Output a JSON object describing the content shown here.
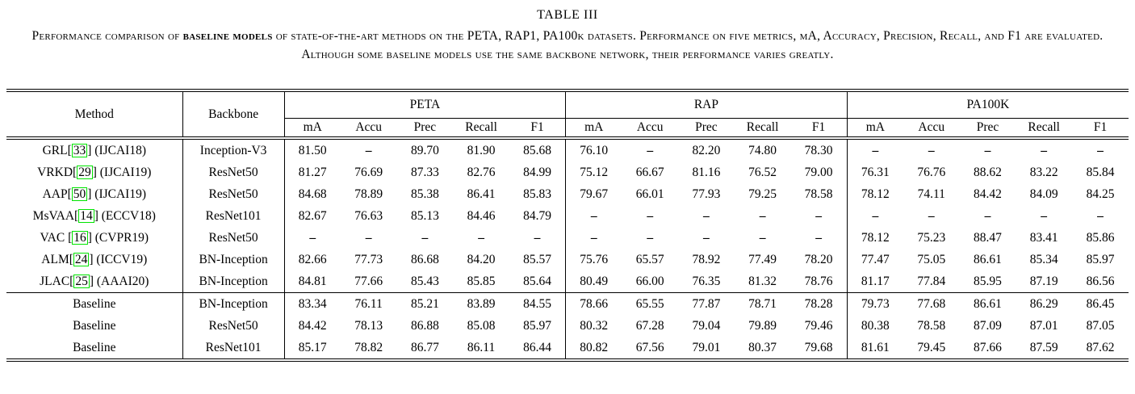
{
  "title": "TABLE III",
  "caption": {
    "segments": [
      {
        "text": "Performance comparison of ",
        "bold": false
      },
      {
        "text": "baseline models",
        "bold": true
      },
      {
        "text": " of state-of-the-art methods on the PETA, RAP1, PA100k datasets. Performance on five metrics, mA, Accuracy, Precision, Recall, and F1 are evaluated. Although some baseline models use the same backbone network, their performance varies greatly.",
        "bold": false
      }
    ]
  },
  "colors": {
    "citation_border": "#00e400",
    "text": "#000000",
    "background": "#ffffff"
  },
  "table": {
    "columns": {
      "method": "Method",
      "backbone": "Backbone"
    },
    "groups": [
      {
        "label": "PETA",
        "metrics": [
          "mA",
          "Accu",
          "Prec",
          "Recall",
          "F1"
        ]
      },
      {
        "label": "RAP",
        "metrics": [
          "mA",
          "Accu",
          "Prec",
          "Recall",
          "F1"
        ]
      },
      {
        "label": "PA100K",
        "metrics": [
          "mA",
          "Accu",
          "Prec",
          "Recall",
          "F1"
        ]
      }
    ],
    "rows": [
      {
        "section": "sota",
        "method_pre": "GRL[",
        "cite": "33",
        "method_post": "] (IJCAI18)",
        "backbone": "Inception-V3",
        "peta": [
          "81.50",
          "–",
          "89.70",
          "81.90",
          "85.68"
        ],
        "rap": [
          "76.10",
          "–",
          "82.20",
          "74.80",
          "78.30"
        ],
        "pa100k": [
          "–",
          "–",
          "–",
          "–",
          "–"
        ]
      },
      {
        "section": "sota",
        "method_pre": "VRKD[",
        "cite": "29",
        "method_post": "] (IJCAI19)",
        "backbone": "ResNet50",
        "peta": [
          "81.27",
          "76.69",
          "87.33",
          "82.76",
          "84.99"
        ],
        "rap": [
          "75.12",
          "66.67",
          "81.16",
          "76.52",
          "79.00"
        ],
        "pa100k": [
          "76.31",
          "76.76",
          "88.62",
          "83.22",
          "85.84"
        ]
      },
      {
        "section": "sota",
        "method_pre": "AAP[",
        "cite": "50",
        "method_post": "] (IJCAI19)",
        "backbone": "ResNet50",
        "peta": [
          "84.68",
          "78.89",
          "85.38",
          "86.41",
          "85.83"
        ],
        "rap": [
          "79.67",
          "66.01",
          "77.93",
          "79.25",
          "78.58"
        ],
        "pa100k": [
          "78.12",
          "74.11",
          "84.42",
          "84.09",
          "84.25"
        ]
      },
      {
        "section": "sota",
        "method_pre": "MsVAA[",
        "cite": "14",
        "method_post": "] (ECCV18)",
        "backbone": "ResNet101",
        "peta": [
          "82.67",
          "76.63",
          "85.13",
          "84.46",
          "84.79"
        ],
        "rap": [
          "–",
          "–",
          "–",
          "–",
          "–"
        ],
        "pa100k": [
          "–",
          "–",
          "–",
          "–",
          "–"
        ]
      },
      {
        "section": "sota",
        "method_pre": "VAC [",
        "cite": "16",
        "method_post": "] (CVPR19)",
        "backbone": "ResNet50",
        "peta": [
          "–",
          "–",
          "–",
          "–",
          "–"
        ],
        "rap": [
          "–",
          "–",
          "–",
          "–",
          "–"
        ],
        "pa100k": [
          "78.12",
          "75.23",
          "88.47",
          "83.41",
          "85.86"
        ]
      },
      {
        "section": "sota",
        "method_pre": "ALM[",
        "cite": "24",
        "method_post": "] (ICCV19)",
        "backbone": "BN-Inception",
        "peta": [
          "82.66",
          "77.73",
          "86.68",
          "84.20",
          "85.57"
        ],
        "rap": [
          "75.76",
          "65.57",
          "78.92",
          "77.49",
          "78.20"
        ],
        "pa100k": [
          "77.47",
          "75.05",
          "86.61",
          "85.34",
          "85.97"
        ]
      },
      {
        "section": "sota",
        "method_pre": "JLAC[",
        "cite": "25",
        "method_post": "] (AAAI20)",
        "backbone": "BN-Inception",
        "peta": [
          "84.81",
          "77.66",
          "85.43",
          "85.85",
          "85.64"
        ],
        "rap": [
          "80.49",
          "66.00",
          "76.35",
          "81.32",
          "78.76"
        ],
        "pa100k": [
          "81.17",
          "77.84",
          "85.95",
          "87.19",
          "86.56"
        ]
      },
      {
        "section": "baseline",
        "method_pre": "Baseline",
        "cite": "",
        "method_post": "",
        "backbone": "BN-Inception",
        "peta": [
          "83.34",
          "76.11",
          "85.21",
          "83.89",
          "84.55"
        ],
        "rap": [
          "78.66",
          "65.55",
          "77.87",
          "78.71",
          "78.28"
        ],
        "pa100k": [
          "79.73",
          "77.68",
          "86.61",
          "86.29",
          "86.45"
        ]
      },
      {
        "section": "baseline",
        "method_pre": "Baseline",
        "cite": "",
        "method_post": "",
        "backbone": "ResNet50",
        "peta": [
          "84.42",
          "78.13",
          "86.88",
          "85.08",
          "85.97"
        ],
        "rap": [
          "80.32",
          "67.28",
          "79.04",
          "79.89",
          "79.46"
        ],
        "pa100k": [
          "80.38",
          "78.58",
          "87.09",
          "87.01",
          "87.05"
        ]
      },
      {
        "section": "baseline",
        "method_pre": "Baseline",
        "cite": "",
        "method_post": "",
        "backbone": "ResNet101",
        "peta": [
          "85.17",
          "78.82",
          "86.77",
          "86.11",
          "86.44"
        ],
        "rap": [
          "80.82",
          "67.56",
          "79.01",
          "80.37",
          "79.68"
        ],
        "pa100k": [
          "81.61",
          "79.45",
          "87.66",
          "87.59",
          "87.62"
        ]
      }
    ]
  }
}
